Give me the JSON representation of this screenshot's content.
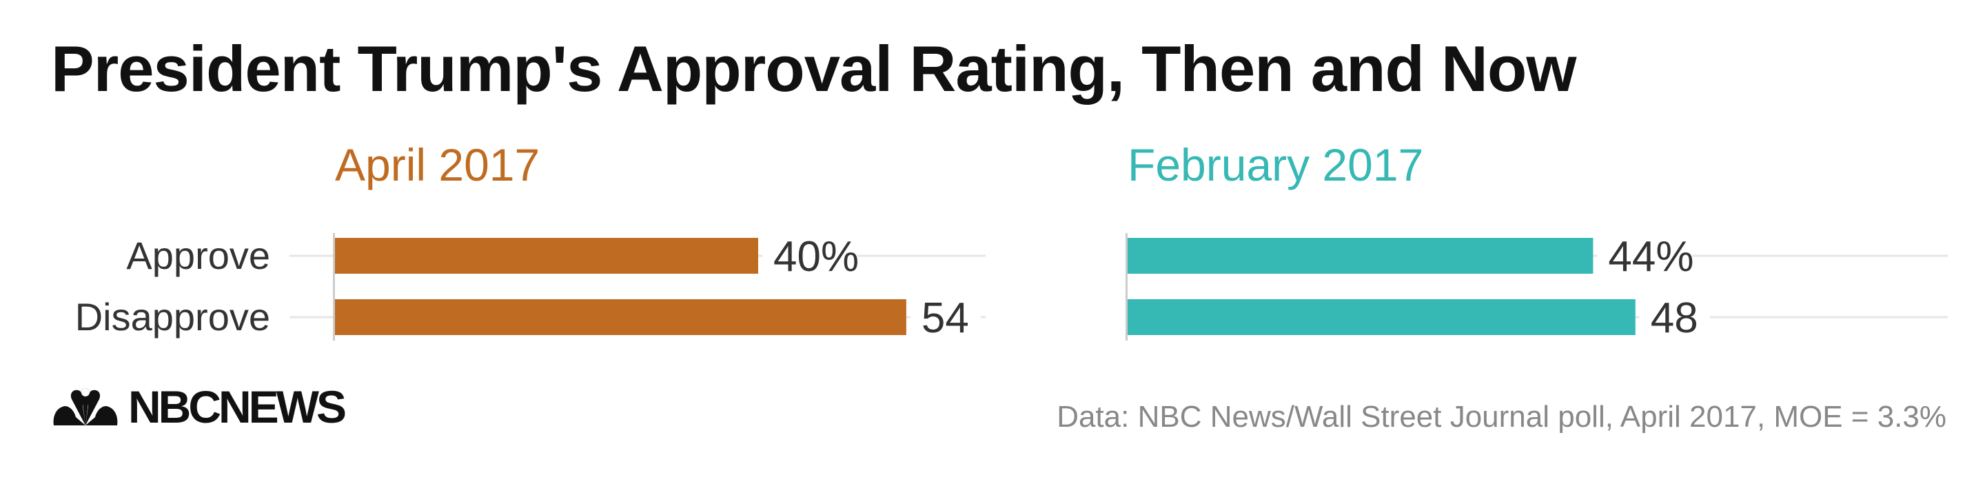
{
  "title": "President Trump's Approval Rating, Then and Now",
  "source": "Data: NBC News/Wall Street Journal poll, April 2017, MOE = 3.3%",
  "logo": {
    "text": "NBCNEWS",
    "icon": "peacock-icon"
  },
  "colors": {
    "april": "#bf6c22",
    "february": "#36b8b5",
    "grid": "#e6e6e6",
    "axis": "#cccccc",
    "text": "#333333"
  },
  "chart_data": [
    {
      "type": "bar",
      "orientation": "horizontal",
      "title": "April 2017",
      "categories": [
        "Approve",
        "Disapprove"
      ],
      "values": [
        40,
        54
      ],
      "data_labels": [
        "40%",
        "54"
      ],
      "color": "#bf6c22"
    },
    {
      "type": "bar",
      "orientation": "horizontal",
      "title": "February 2017",
      "categories": [
        "Approve",
        "Disapprove"
      ],
      "values": [
        44,
        48
      ],
      "data_labels": [
        "44%",
        "48"
      ],
      "color": "#36b8b5"
    }
  ]
}
